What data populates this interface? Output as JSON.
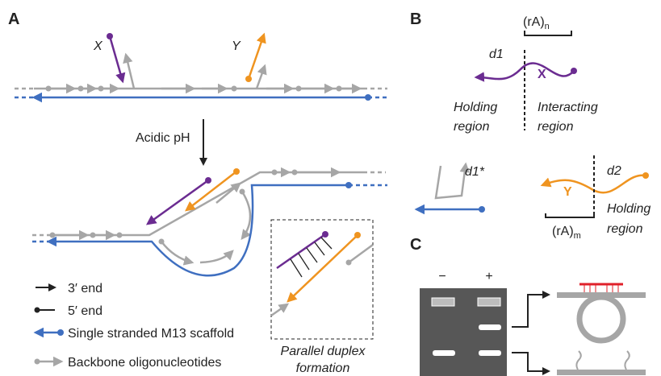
{
  "panels": [
    {
      "label": "A"
    },
    {
      "label": "B"
    },
    {
      "label": "C"
    }
  ],
  "panel_a": {
    "strand_labels": [
      "X",
      "Y"
    ],
    "condition": "Acidic pH",
    "inset_caption": [
      "Parallel duplex",
      "formation"
    ],
    "legend": [
      "3′ end",
      "5′ end",
      "Single stranded M13 scaffold",
      "Backbone oligonucleotides"
    ]
  },
  "panel_b": {
    "linker_top": {
      "text": "(rA)",
      "subscript": "n"
    },
    "d1": "d1",
    "x": "X",
    "left_region": [
      "Holding",
      "region"
    ],
    "right_region": [
      "Interacting",
      "region"
    ],
    "d1_star": "d1*",
    "d2": "d2",
    "y": "Y",
    "linker_bottom": {
      "text": "(rA)",
      "subscript": "m"
    },
    "bottom_region": [
      "Holding",
      "region"
    ]
  },
  "panel_c": {
    "lanes": [
      "−",
      "+"
    ]
  }
}
